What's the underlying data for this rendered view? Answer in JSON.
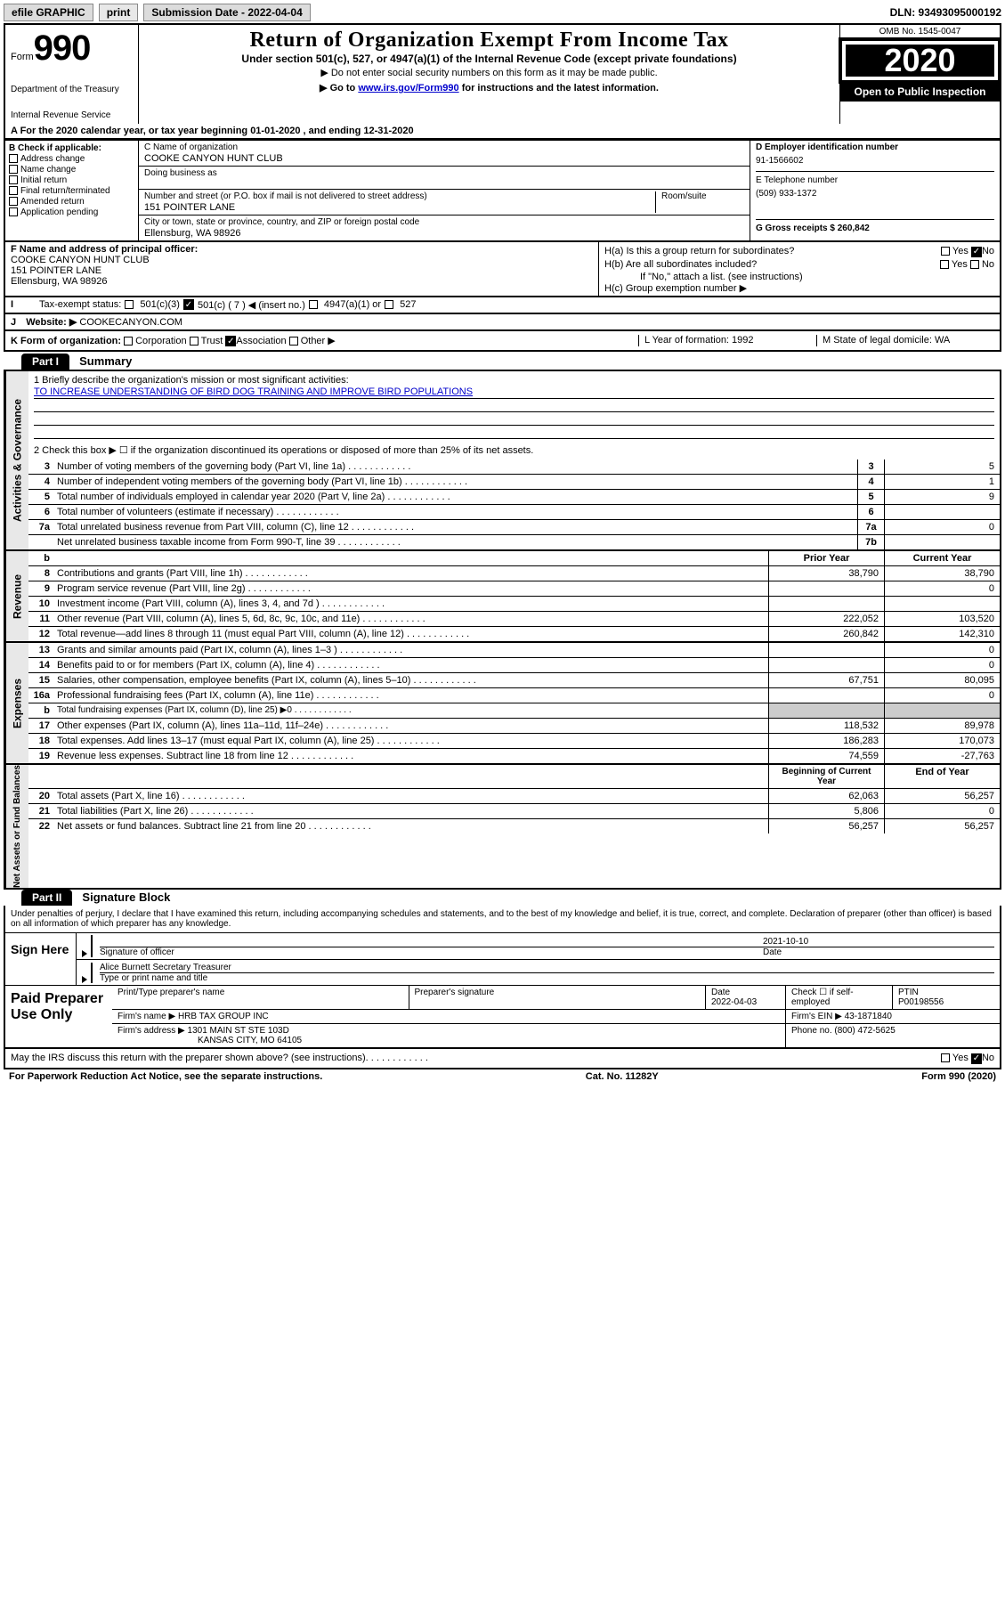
{
  "topbar": {
    "efile": "efile GRAPHIC",
    "print": "print",
    "submission_label": "Submission Date - 2022-04-04",
    "dln": "DLN: 93493095000192"
  },
  "header": {
    "form_prefix": "Form",
    "form_number": "990",
    "dept1": "Department of the Treasury",
    "dept2": "Internal Revenue Service",
    "title": "Return of Organization Exempt From Income Tax",
    "subtitle": "Under section 501(c), 527, or 4947(a)(1) of the Internal Revenue Code (except private foundations)",
    "note1": "▶ Do not enter social security numbers on this form as it may be made public.",
    "note2_pre": "▶ Go to ",
    "note2_link": "www.irs.gov/Form990",
    "note2_post": " for instructions and the latest information.",
    "omb": "OMB No. 1545-0047",
    "year": "2020",
    "open": "Open to Public Inspection"
  },
  "row_a": "A For the 2020 calendar year, or tax year beginning 01-01-2020    , and ending 12-31-2020",
  "col_b": {
    "title": "B Check if applicable:",
    "items": [
      "Address change",
      "Name change",
      "Initial return",
      "Final return/terminated",
      "Amended return",
      "Application pending"
    ]
  },
  "col_c": {
    "name_label": "C Name of organization",
    "name": "COOKE CANYON HUNT CLUB",
    "dba_label": "Doing business as",
    "addr_label": "Number and street (or P.O. box if mail is not delivered to street address)",
    "room_label": "Room/suite",
    "addr": "151 POINTER LANE",
    "city_label": "City or town, state or province, country, and ZIP or foreign postal code",
    "city": "Ellensburg, WA  98926"
  },
  "col_d": {
    "d_label": "D Employer identification number",
    "d_val": "91-1566602",
    "e_label": "E Telephone number",
    "e_val": "(509) 933-1372",
    "g_label": "G Gross receipts $ 260,842"
  },
  "row_f": {
    "f_label": "F  Name and address of principal officer:",
    "f_name": "COOKE CANYON HUNT CLUB",
    "f_addr1": "151 POINTER LANE",
    "f_addr2": "Ellensburg, WA  98926",
    "ha": "H(a)  Is this a group return for subordinates?",
    "hb": "H(b)  Are all subordinates included?",
    "hb_note": "If \"No,\" attach a list. (see instructions)",
    "hc": "H(c)  Group exemption number ▶",
    "yes": "Yes",
    "no": "No"
  },
  "row_i": {
    "label": "Tax-exempt status:",
    "opt1": "501(c)(3)",
    "opt2_pre": "501(c) ( 7 ) ◀ (insert no.)",
    "opt3": "4947(a)(1) or",
    "opt4": "527"
  },
  "row_j": {
    "label": "J",
    "website_label": "Website: ▶",
    "website": "COOKECANYON.COM"
  },
  "row_k": {
    "k_label": "K Form of organization:",
    "k_opts": [
      "Corporation",
      "Trust",
      "Association",
      "Other ▶"
    ],
    "l": "L Year of formation: 1992",
    "m": "M State of legal domicile: WA"
  },
  "part1": {
    "header": "Part I",
    "title": "Summary"
  },
  "mission": {
    "q1_pre": "1   Briefly describe the organization's mission or most significant activities:",
    "q1_val": "TO INCREASE UNDERSTANDING OF BIRD DOG TRAINING AND IMPROVE BIRD POPULATIONS",
    "q2": "2   Check this box ▶ ☐  if the organization discontinued its operations or disposed of more than 25% of its net assets."
  },
  "sidebars": {
    "gov": "Activities & Governance",
    "rev": "Revenue",
    "exp": "Expenses",
    "net": "Net Assets or Fund Balances"
  },
  "gov_rows": [
    {
      "n": "3",
      "t": "Number of voting members of the governing body (Part VI, line 1a)",
      "c": "3",
      "v": "5"
    },
    {
      "n": "4",
      "t": "Number of independent voting members of the governing body (Part VI, line 1b)",
      "c": "4",
      "v": "1"
    },
    {
      "n": "5",
      "t": "Total number of individuals employed in calendar year 2020 (Part V, line 2a)",
      "c": "5",
      "v": "9"
    },
    {
      "n": "6",
      "t": "Total number of volunteers (estimate if necessary)",
      "c": "6",
      "v": ""
    },
    {
      "n": "7a",
      "t": "Total unrelated business revenue from Part VIII, column (C), line 12",
      "c": "7a",
      "v": "0"
    },
    {
      "n": "",
      "t": "Net unrelated business taxable income from Form 990-T, line 39",
      "c": "7b",
      "v": ""
    }
  ],
  "rev_header": {
    "prior": "Prior Year",
    "current": "Current Year",
    "b": "b"
  },
  "rev_rows": [
    {
      "n": "8",
      "t": "Contributions and grants (Part VIII, line 1h)",
      "p": "38,790",
      "c": "38,790"
    },
    {
      "n": "9",
      "t": "Program service revenue (Part VIII, line 2g)",
      "p": "",
      "c": "0"
    },
    {
      "n": "10",
      "t": "Investment income (Part VIII, column (A), lines 3, 4, and 7d )",
      "p": "",
      "c": ""
    },
    {
      "n": "11",
      "t": "Other revenue (Part VIII, column (A), lines 5, 6d, 8c, 9c, 10c, and 11e)",
      "p": "222,052",
      "c": "103,520"
    },
    {
      "n": "12",
      "t": "Total revenue—add lines 8 through 11 (must equal Part VIII, column (A), line 12)",
      "p": "260,842",
      "c": "142,310"
    }
  ],
  "exp_rows": [
    {
      "n": "13",
      "t": "Grants and similar amounts paid (Part IX, column (A), lines 1–3 )",
      "p": "",
      "c": "0"
    },
    {
      "n": "14",
      "t": "Benefits paid to or for members (Part IX, column (A), line 4)",
      "p": "",
      "c": "0"
    },
    {
      "n": "15",
      "t": "Salaries, other compensation, employee benefits (Part IX, column (A), lines 5–10)",
      "p": "67,751",
      "c": "80,095"
    },
    {
      "n": "16a",
      "t": "Professional fundraising fees (Part IX, column (A), line 11e)",
      "p": "",
      "c": "0"
    },
    {
      "n": "b",
      "t": "Total fundraising expenses (Part IX, column (D), line 25) ▶0",
      "p": "shaded",
      "c": "shaded"
    },
    {
      "n": "17",
      "t": "Other expenses (Part IX, column (A), lines 11a–11d, 11f–24e)",
      "p": "118,532",
      "c": "89,978"
    },
    {
      "n": "18",
      "t": "Total expenses. Add lines 13–17 (must equal Part IX, column (A), line 25)",
      "p": "186,283",
      "c": "170,073"
    },
    {
      "n": "19",
      "t": "Revenue less expenses. Subtract line 18 from line 12",
      "p": "74,559",
      "c": "-27,763"
    }
  ],
  "net_header": {
    "begin": "Beginning of Current Year",
    "end": "End of Year"
  },
  "net_rows": [
    {
      "n": "20",
      "t": "Total assets (Part X, line 16)",
      "p": "62,063",
      "c": "56,257"
    },
    {
      "n": "21",
      "t": "Total liabilities (Part X, line 26)",
      "p": "5,806",
      "c": "0"
    },
    {
      "n": "22",
      "t": "Net assets or fund balances. Subtract line 21 from line 20",
      "p": "56,257",
      "c": "56,257"
    }
  ],
  "part2": {
    "header": "Part II",
    "title": "Signature Block"
  },
  "sig": {
    "intro": "Under penalties of perjury, I declare that I have examined this return, including accompanying schedules and statements, and to the best of my knowledge and belief, it is true, correct, and complete. Declaration of preparer (other than officer) is based on all information of which preparer has any knowledge.",
    "sign_here": "Sign Here",
    "sig_officer": "Signature of officer",
    "date": "Date",
    "date_val": "2021-10-10",
    "name_title": "Alice Burnett  Secretary Treasurer",
    "name_label": "Type or print name and title"
  },
  "paid": {
    "title": "Paid Preparer Use Only",
    "h1": "Print/Type preparer's name",
    "h2": "Preparer's signature",
    "h3": "Date",
    "h3v": "2022-04-03",
    "h4": "Check ☐ if self-employed",
    "h5": "PTIN",
    "h5v": "P00198556",
    "firm_name_label": "Firm's name    ▶",
    "firm_name": "HRB TAX GROUP INC",
    "firm_ein_label": "Firm's EIN ▶",
    "firm_ein": "43-1871840",
    "firm_addr_label": "Firm's address ▶",
    "firm_addr1": "1301 MAIN ST STE 103D",
    "firm_addr2": "KANSAS CITY, MO  64105",
    "phone_label": "Phone no.",
    "phone": "(800) 472-5625"
  },
  "discuss": {
    "q": "May the IRS discuss this return with the preparer shown above? (see instructions)",
    "yes": "Yes",
    "no": "No"
  },
  "footer": {
    "left": "For Paperwork Reduction Act Notice, see the separate instructions.",
    "mid": "Cat. No. 11282Y",
    "right": "Form 990 (2020)"
  }
}
